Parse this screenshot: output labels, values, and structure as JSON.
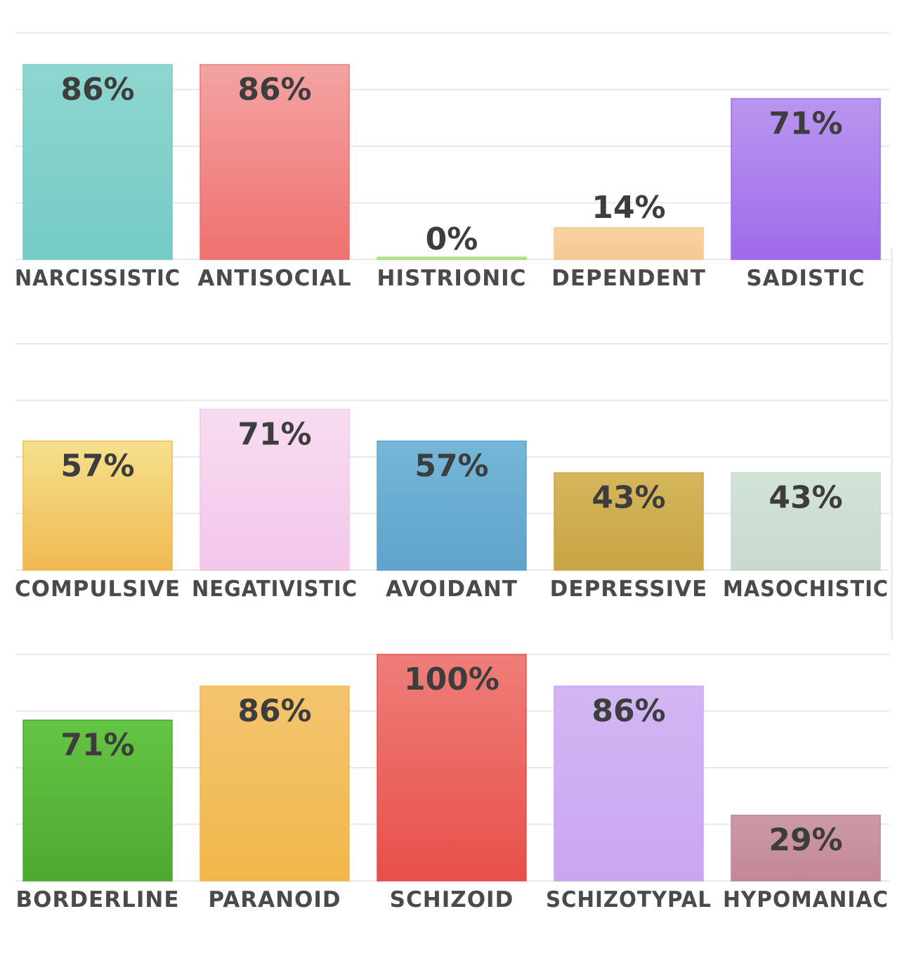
{
  "chart_data": [
    {
      "type": "bar",
      "ylim": [
        0,
        100
      ],
      "grid": true,
      "categories": [
        "NARCISSISTIC",
        "ANTISOCIAL",
        "HISTRIONIC",
        "DEPENDENT",
        "SADISTIC"
      ],
      "values": [
        86,
        86,
        0,
        14,
        71
      ],
      "value_labels": [
        "86%",
        "86%",
        "0%",
        "14%",
        "71%"
      ],
      "colors": [
        [
          "#8fd6d0",
          "#74cbc4"
        ],
        [
          "#f3a3a3",
          "#ef716f"
        ],
        [
          "#c8e9a3",
          "#a6dd7c"
        ],
        [
          "#f8d3a5",
          "#f7c890"
        ],
        [
          "#b996ef",
          "#9f6aea"
        ]
      ]
    },
    {
      "type": "bar",
      "ylim": [
        0,
        100
      ],
      "grid": true,
      "categories": [
        "COMPULSIVE",
        "NEGATIVISTIC",
        "AVOIDANT",
        "DEPRESSIVE",
        "MASOCHISTIC"
      ],
      "values": [
        57,
        71,
        57,
        43,
        43
      ],
      "value_labels": [
        "57%",
        "71%",
        "57%",
        "43%",
        "43%"
      ],
      "colors": [
        [
          "#f6e08d",
          "#f1b950"
        ],
        [
          "#f8dcf1",
          "#f3c6ea"
        ],
        [
          "#74b7d8",
          "#5fa3cb"
        ],
        [
          "#d4b65c",
          "#c9a444"
        ],
        [
          "#d2e3d8",
          "#c8d9ce"
        ]
      ]
    },
    {
      "type": "bar",
      "ylim": [
        0,
        100
      ],
      "grid": true,
      "categories": [
        "BORDERLINE",
        "PARANOID",
        "SCHIZOID",
        "SCHIZOTYPAL",
        "HYPOMANIAC"
      ],
      "values": [
        71,
        86,
        100,
        86,
        29
      ],
      "value_labels": [
        "71%",
        "86%",
        "100%",
        "86%",
        "29%"
      ],
      "colors": [
        [
          "#64c443",
          "#4ea932"
        ],
        [
          "#f4c46e",
          "#f1b74c"
        ],
        [
          "#ef7d79",
          "#e84f49"
        ],
        [
          "#d2b6f3",
          "#c9a6f1"
        ],
        [
          "#cd9aa5",
          "#c28895"
        ]
      ]
    }
  ]
}
